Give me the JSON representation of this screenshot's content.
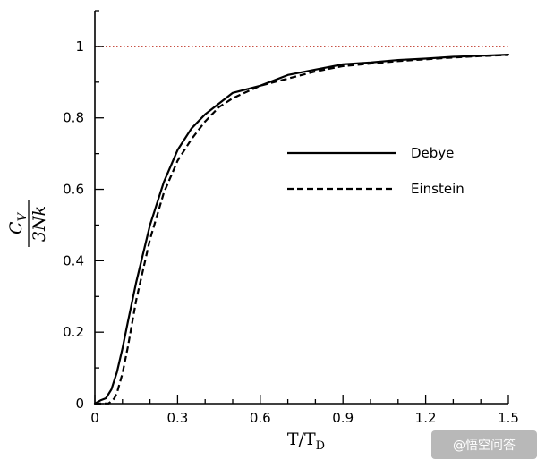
{
  "chart_data": {
    "type": "line",
    "xlabel_main": "T/T",
    "xlabel_sub": "D",
    "ylabel_num_main": "C",
    "ylabel_num_sub": "V",
    "ylabel_den": "3Nk",
    "xlim": [
      0,
      1.5
    ],
    "ylim": [
      0,
      1.1
    ],
    "xticks": [
      0,
      0.3,
      0.6,
      0.9,
      1.2,
      1.5
    ],
    "xtick_labels": [
      "0",
      "0.3",
      "0.6",
      "0.9",
      "1.2",
      "1.5"
    ],
    "yticks": [
      0,
      0.2,
      0.4,
      0.6,
      0.8,
      1
    ],
    "ytick_labels": [
      "0",
      "0.2",
      "0.4",
      "0.6",
      "0.8",
      "1"
    ],
    "grid": false,
    "legend_placement": "center-right",
    "reference_line": {
      "y": 1,
      "color": "#c0392b",
      "style": "dotted"
    },
    "series": [
      {
        "name": "Debye",
        "style": "solid",
        "color": "#000000",
        "x": [
          0,
          0.02,
          0.04,
          0.06,
          0.08,
          0.1,
          0.12,
          0.15,
          0.2,
          0.25,
          0.3,
          0.35,
          0.4,
          0.45,
          0.5,
          0.6,
          0.7,
          0.8,
          0.9,
          1.0,
          1.1,
          1.2,
          1.3,
          1.4,
          1.5
        ],
        "y": [
          0,
          0.009,
          0.015,
          0.04,
          0.088,
          0.154,
          0.23,
          0.34,
          0.5,
          0.62,
          0.71,
          0.77,
          0.81,
          0.84,
          0.87,
          0.89,
          0.92,
          0.935,
          0.95,
          0.955,
          0.962,
          0.966,
          0.971,
          0.974,
          0.977
        ]
      },
      {
        "name": "Einstein",
        "style": "dashed",
        "color": "#000000",
        "x": [
          0,
          0.05,
          0.07,
          0.08,
          0.1,
          0.12,
          0.15,
          0.2,
          0.25,
          0.3,
          0.35,
          0.4,
          0.45,
          0.5,
          0.6,
          0.7,
          0.8,
          0.9,
          1.0,
          1.1,
          1.2,
          1.3,
          1.4,
          1.5
        ],
        "y": [
          0,
          0.0006,
          0.014,
          0.03,
          0.084,
          0.16,
          0.29,
          0.46,
          0.59,
          0.68,
          0.74,
          0.79,
          0.83,
          0.855,
          0.89,
          0.91,
          0.93,
          0.945,
          0.952,
          0.959,
          0.964,
          0.969,
          0.973,
          0.976
        ]
      }
    ]
  },
  "watermark": {
    "text": "@悟空问答"
  }
}
